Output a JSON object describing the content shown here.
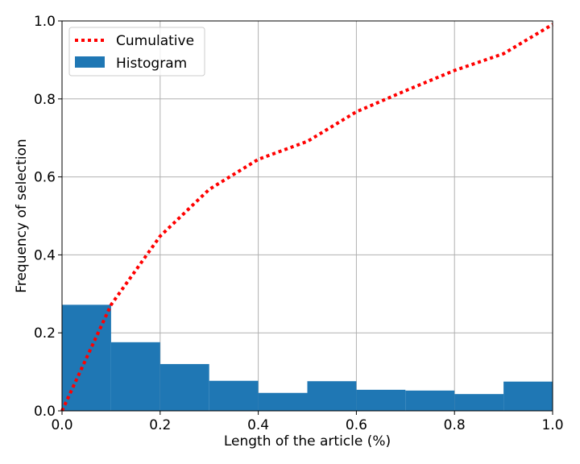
{
  "chart_data": {
    "type": "bar",
    "title": "",
    "xlabel": "Length of the article (%)",
    "ylabel": "Frequency of selection",
    "xlim": [
      0.0,
      1.0
    ],
    "ylim": [
      0.0,
      1.0
    ],
    "xticks": [
      "0.0",
      "0.2",
      "0.4",
      "0.6",
      "0.8",
      "1.0"
    ],
    "yticks": [
      "0.0",
      "0.2",
      "0.4",
      "0.6",
      "0.8",
      "1.0"
    ],
    "grid": true,
    "legend_position": "top-left",
    "histogram": {
      "name": "Histogram",
      "color": "#1f77b4",
      "bin_edges": [
        0.0,
        0.1,
        0.2,
        0.3,
        0.4,
        0.5,
        0.6,
        0.7,
        0.8,
        0.9,
        1.0
      ],
      "values": [
        0.272,
        0.176,
        0.12,
        0.077,
        0.046,
        0.076,
        0.054,
        0.052,
        0.043,
        0.075
      ]
    },
    "cumulative": {
      "name": "Cumulative",
      "color": "#ff0000",
      "style": "dotted",
      "x": [
        0.0,
        0.1,
        0.2,
        0.3,
        0.4,
        0.5,
        0.6,
        0.7,
        0.8,
        0.9,
        1.0
      ],
      "y": [
        0.0,
        0.272,
        0.448,
        0.568,
        0.645,
        0.691,
        0.767,
        0.821,
        0.873,
        0.916,
        0.991
      ]
    }
  }
}
